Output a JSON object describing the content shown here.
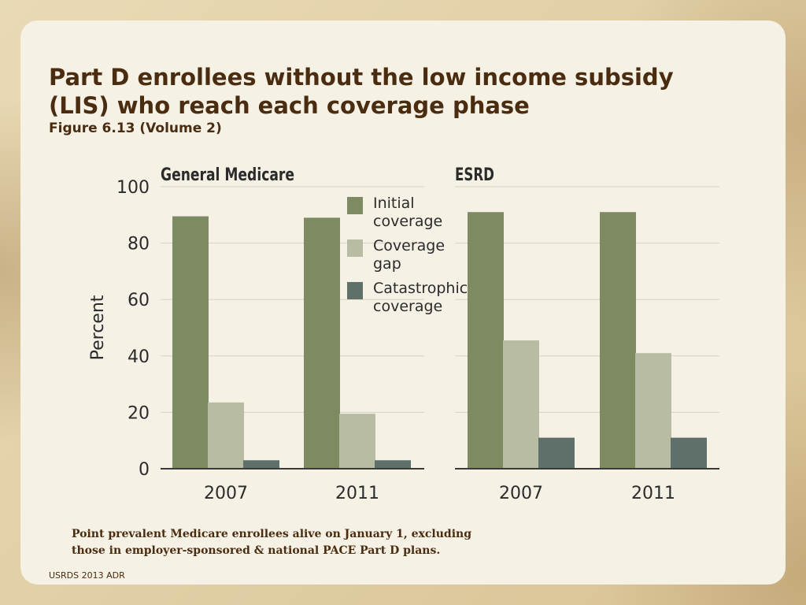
{
  "slide": {
    "title": "Part D enrollees without the low income subsidy (LIS) who reach each coverage phase",
    "subtitle": "Figure 6.13 (Volume 2)",
    "footnote": "Point prevalent Medicare enrollees alive on January 1, excluding those in employer-sponsored & national PACE Part D plans.",
    "source": "USRDS 2013 ADR"
  },
  "chart_data": [
    {
      "type": "bar",
      "title": "General Medicare",
      "ylabel": "Percent",
      "ylim": [
        0,
        100
      ],
      "yticks": [
        0,
        20,
        40,
        60,
        80,
        100
      ],
      "categories": [
        "2007",
        "2011"
      ],
      "series": [
        {
          "name": "Initial coverage",
          "color": "#7d8a62",
          "values": [
            89.5,
            89
          ]
        },
        {
          "name": "Coverage gap",
          "color": "#b8bca2",
          "values": [
            23.5,
            19.5
          ]
        },
        {
          "name": "Catastrophic coverage",
          "color": "#5f6f69",
          "values": [
            3,
            3
          ]
        }
      ],
      "grid": true,
      "legend_position": "top-right"
    },
    {
      "type": "bar",
      "title": "ESRD",
      "ylim": [
        0,
        100
      ],
      "categories": [
        "2007",
        "2011"
      ],
      "series": [
        {
          "name": "Initial coverage",
          "color": "#7d8a62",
          "values": [
            91,
            91
          ]
        },
        {
          "name": "Coverage gap",
          "color": "#b8bca2",
          "values": [
            45.5,
            41
          ]
        },
        {
          "name": "Catastrophic coverage",
          "color": "#5f6f69",
          "values": [
            11,
            11
          ]
        }
      ],
      "grid": true
    }
  ],
  "legend": {
    "items": [
      {
        "line1": "Initial",
        "line2": "coverage",
        "color": "#7d8a62"
      },
      {
        "line1": "Coverage",
        "line2": "gap",
        "color": "#b8bca2"
      },
      {
        "line1": "Catastrophic",
        "line2": "coverage",
        "color": "#5f6f69"
      }
    ]
  }
}
